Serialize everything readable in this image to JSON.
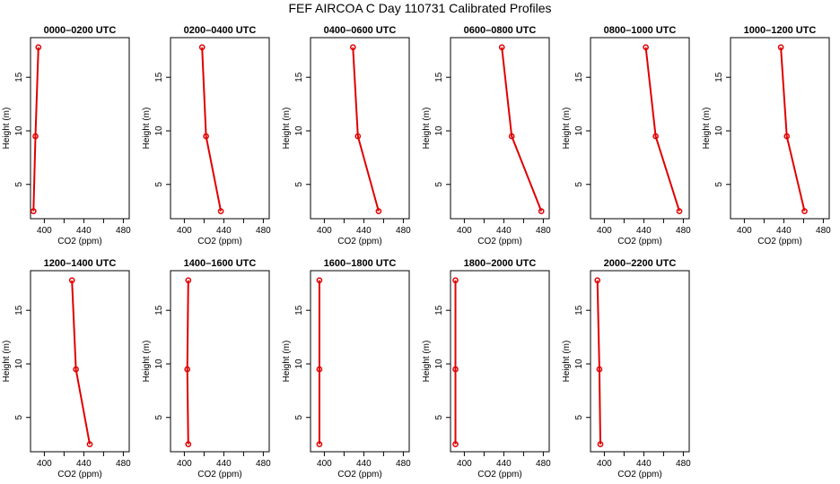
{
  "title": "FEF AIRCOA C  Day 110731  Calibrated Profiles",
  "chart_data": [
    {
      "type": "line",
      "title": "0000–0200 UTC",
      "xlabel": "CO2 (ppm)",
      "ylabel": "Height (m)",
      "xlim": [
        386,
        486
      ],
      "ylim": [
        1.8,
        18.7
      ],
      "x_ticks": [
        "400",
        "440",
        "480"
      ],
      "y_ticks": [
        "5",
        "10",
        "15"
      ],
      "grid": false,
      "series": [
        {
          "x": [
            389,
            391,
            394
          ],
          "y": [
            2.5,
            9.5,
            17.8
          ]
        }
      ]
    },
    {
      "type": "line",
      "title": "0200–0400 UTC",
      "xlabel": "CO2 (ppm)",
      "ylabel": "Height (m)",
      "xlim": [
        386,
        486
      ],
      "ylim": [
        1.8,
        18.7
      ],
      "x_ticks": [
        "400",
        "440",
        "480"
      ],
      "y_ticks": [
        "5",
        "10",
        "15"
      ],
      "grid": false,
      "series": [
        {
          "x": [
            437,
            422,
            418
          ],
          "y": [
            2.5,
            9.5,
            17.8
          ]
        }
      ]
    },
    {
      "type": "line",
      "title": "0400–0600 UTC",
      "xlabel": "CO2 (ppm)",
      "ylabel": "Height (m)",
      "xlim": [
        386,
        486
      ],
      "ylim": [
        1.8,
        18.7
      ],
      "x_ticks": [
        "400",
        "440",
        "480"
      ],
      "y_ticks": [
        "5",
        "10",
        "15"
      ],
      "grid": false,
      "series": [
        {
          "x": [
            455,
            434,
            429
          ],
          "y": [
            2.5,
            9.5,
            17.8
          ]
        }
      ]
    },
    {
      "type": "line",
      "title": "0600–0800 UTC",
      "xlabel": "CO2 (ppm)",
      "ylabel": "Height (m)",
      "xlim": [
        386,
        486
      ],
      "ylim": [
        1.8,
        18.7
      ],
      "x_ticks": [
        "400",
        "440",
        "480"
      ],
      "y_ticks": [
        "5",
        "10",
        "15"
      ],
      "grid": false,
      "series": [
        {
          "x": [
            478,
            448,
            438
          ],
          "y": [
            2.5,
            9.5,
            17.8
          ]
        }
      ]
    },
    {
      "type": "line",
      "title": "0800–1000 UTC",
      "xlabel": "CO2 (ppm)",
      "ylabel": "Height (m)",
      "xlim": [
        386,
        486
      ],
      "ylim": [
        1.8,
        18.7
      ],
      "x_ticks": [
        "400",
        "440",
        "480"
      ],
      "y_ticks": [
        "5",
        "10",
        "15"
      ],
      "grid": false,
      "series": [
        {
          "x": [
            476,
            452,
            442
          ],
          "y": [
            2.5,
            9.5,
            17.8
          ]
        }
      ]
    },
    {
      "type": "line",
      "title": "1000–1200 UTC",
      "xlabel": "CO2 (ppm)",
      "ylabel": "Height (m)",
      "xlim": [
        386,
        486
      ],
      "ylim": [
        1.8,
        18.7
      ],
      "x_ticks": [
        "400",
        "440",
        "480"
      ],
      "y_ticks": [
        "5",
        "10",
        "15"
      ],
      "grid": false,
      "series": [
        {
          "x": [
            461,
            443,
            437
          ],
          "y": [
            2.5,
            9.5,
            17.8
          ]
        }
      ]
    },
    {
      "type": "line",
      "title": "1200–1400 UTC",
      "xlabel": "CO2 (ppm)",
      "ylabel": "Height (m)",
      "xlim": [
        386,
        486
      ],
      "ylim": [
        1.8,
        18.7
      ],
      "x_ticks": [
        "400",
        "440",
        "480"
      ],
      "y_ticks": [
        "5",
        "10",
        "15"
      ],
      "grid": false,
      "series": [
        {
          "x": [
            446,
            432,
            428
          ],
          "y": [
            2.5,
            9.5,
            17.8
          ]
        }
      ]
    },
    {
      "type": "line",
      "title": "1400–1600 UTC",
      "xlabel": "CO2 (ppm)",
      "ylabel": "Height (m)",
      "xlim": [
        386,
        486
      ],
      "ylim": [
        1.8,
        18.7
      ],
      "x_ticks": [
        "400",
        "440",
        "480"
      ],
      "y_ticks": [
        "5",
        "10",
        "15"
      ],
      "grid": false,
      "series": [
        {
          "x": [
            404,
            403,
            404
          ],
          "y": [
            2.5,
            9.5,
            17.8
          ]
        }
      ]
    },
    {
      "type": "line",
      "title": "1600–1800 UTC",
      "xlabel": "CO2 (ppm)",
      "ylabel": "Height (m)",
      "xlim": [
        386,
        486
      ],
      "ylim": [
        1.8,
        18.7
      ],
      "x_ticks": [
        "400",
        "440",
        "480"
      ],
      "y_ticks": [
        "5",
        "10",
        "15"
      ],
      "grid": false,
      "series": [
        {
          "x": [
            395,
            395,
            395
          ],
          "y": [
            2.5,
            9.5,
            17.8
          ]
        }
      ]
    },
    {
      "type": "line",
      "title": "1800–2000 UTC",
      "xlabel": "CO2 (ppm)",
      "ylabel": "Height (m)",
      "xlim": [
        386,
        486
      ],
      "ylim": [
        1.8,
        18.7
      ],
      "x_ticks": [
        "400",
        "440",
        "480"
      ],
      "y_ticks": [
        "5",
        "10",
        "15"
      ],
      "grid": false,
      "series": [
        {
          "x": [
            391,
            391,
            391
          ],
          "y": [
            2.5,
            9.5,
            17.8
          ]
        }
      ]
    },
    {
      "type": "line",
      "title": "2000–2200 UTC",
      "xlabel": "CO2 (ppm)",
      "ylabel": "Height (m)",
      "xlim": [
        386,
        486
      ],
      "ylim": [
        1.8,
        18.7
      ],
      "x_ticks": [
        "400",
        "440",
        "480"
      ],
      "y_ticks": [
        "5",
        "10",
        "15"
      ],
      "grid": false,
      "series": [
        {
          "x": [
            396,
            395,
            393
          ],
          "y": [
            2.5,
            9.5,
            17.8
          ]
        }
      ]
    }
  ]
}
